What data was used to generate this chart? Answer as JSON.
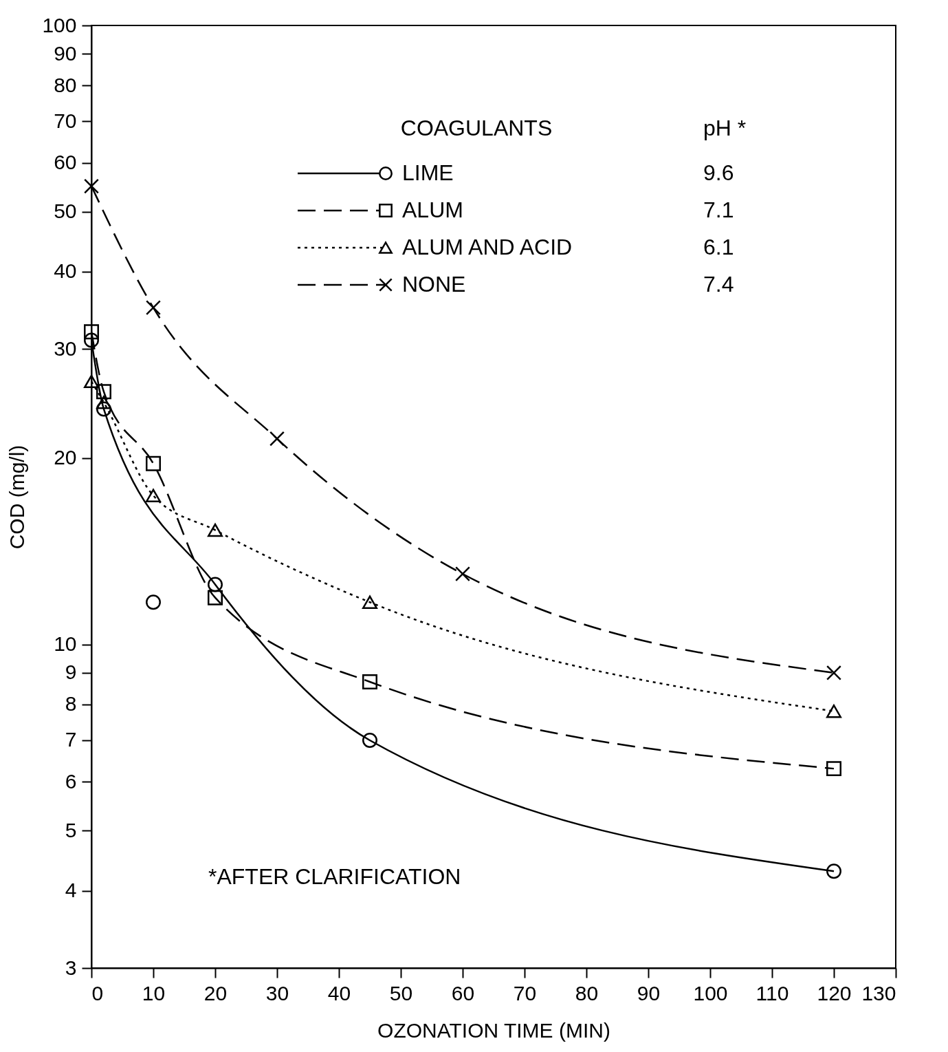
{
  "chart_data": {
    "type": "line",
    "xlabel": "OZONATION  TIME  (MIN)",
    "ylabel": "COD (mg/l)",
    "legend_title": "COAGULANTS",
    "xlim": [
      0,
      130
    ],
    "xticks": [
      0,
      10,
      20,
      30,
      40,
      50,
      60,
      70,
      80,
      90,
      100,
      110,
      120,
      130
    ],
    "ylim": [
      3,
      100
    ],
    "yticks": [
      3,
      4,
      5,
      6,
      7,
      8,
      9,
      10,
      20,
      30,
      40,
      50,
      60,
      70,
      80,
      90,
      100
    ],
    "log": true,
    "grid": false,
    "legend": "top",
    "series": [
      {
        "name": "LIME",
        "marker": "circle",
        "line_style": "solid",
        "color": "#000000",
        "x": [
          0,
          2,
          20,
          45,
          120
        ],
        "values": [
          31,
          24,
          12.5,
          7.0,
          4.3
        ]
      },
      {
        "type": "scatter",
        "marker": "circle",
        "color": "#000000",
        "x": [
          10
        ],
        "values": [
          11.7
        ]
      },
      {
        "name": "ALUM",
        "marker": "square",
        "line_style": "dashed",
        "color": "#000000",
        "x": [
          0,
          2,
          10,
          20,
          45,
          120
        ],
        "values": [
          32,
          25.6,
          19.6,
          11.9,
          8.7,
          6.3
        ]
      },
      {
        "name": "ALUM AND ACID",
        "marker": "triangle",
        "line_style": "dotted",
        "color": "#000000",
        "x": [
          0,
          2,
          10,
          20,
          45,
          120
        ],
        "values": [
          26.6,
          24.6,
          17.4,
          15.3,
          11.7,
          7.8
        ]
      },
      {
        "name": "NONE",
        "marker": "cross",
        "line_style": "dashed",
        "color": "#000000",
        "x": [
          0,
          10,
          30,
          60,
          120
        ],
        "values": [
          55,
          35,
          21.5,
          13,
          9.0
        ]
      }
    ],
    "annotations": [
      "pH *",
      "9.6",
      "7.1",
      "6.1",
      "7.4",
      "*AFTER CLARIFICATION"
    ]
  }
}
